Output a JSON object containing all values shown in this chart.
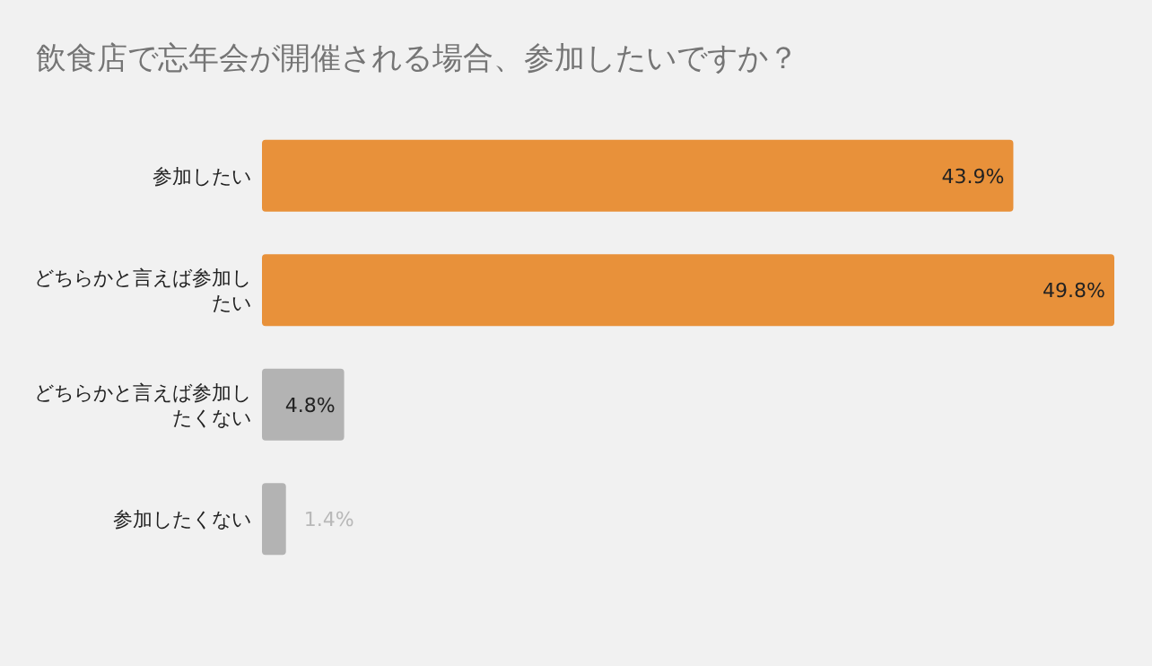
{
  "chart_data": {
    "type": "bar",
    "orientation": "horizontal",
    "title": "飲食店で忘年会が開催される場合、参加したいですか？",
    "categories": [
      "参加したい",
      "どちらかと言えば参加したい",
      "どちらかと言えば参加したくない",
      "参加したくない"
    ],
    "values": [
      43.9,
      49.8,
      4.8,
      1.4
    ],
    "colors": [
      "#e8913a",
      "#e8913a",
      "#b3b3b3",
      "#b3b3b3"
    ],
    "data_labels": true,
    "value_labels": [
      "43.9%",
      "49.8%",
      "4.8%",
      "1.4%"
    ]
  }
}
